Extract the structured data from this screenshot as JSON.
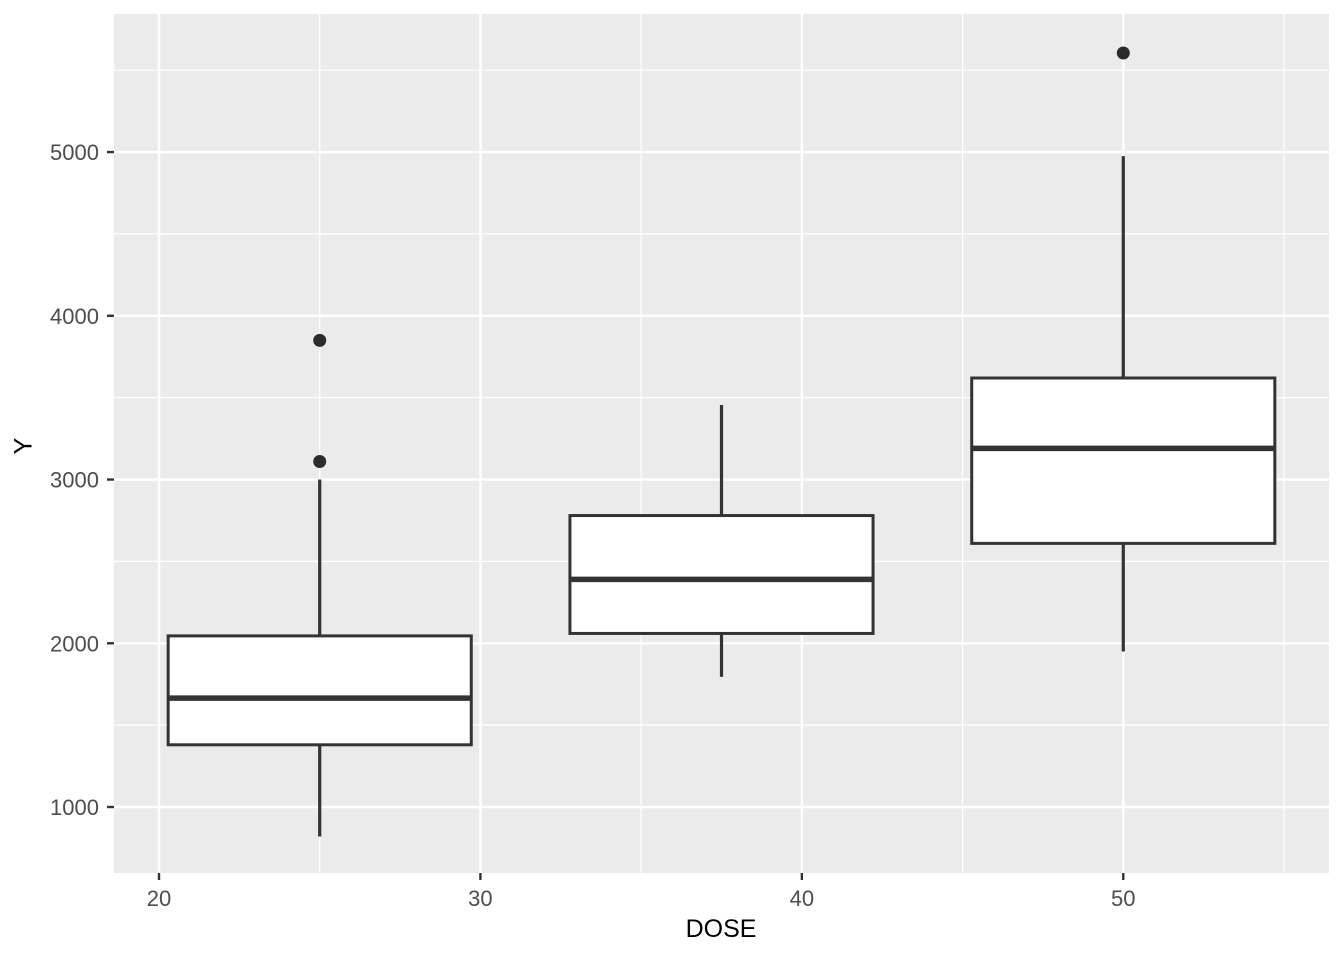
{
  "figure": {
    "background": "#ffffff",
    "panel_background": "#ebebeb",
    "grid_color": "#ffffff",
    "box_fill": "#ffffff",
    "box_stroke": "#333333",
    "outlier_color": "#2b2b2b",
    "tick_mark_color": "#333333",
    "tick_label_color": "#4d4d4d",
    "axis_title_color": "#000000"
  },
  "chart_data": {
    "type": "boxplot",
    "title": "",
    "xlabel": "DOSE",
    "ylabel": "Y",
    "xlim": [
      18.6,
      56.4
    ],
    "ylim": [
      597,
      5843
    ],
    "x_major_ticks": [
      20,
      30,
      40,
      50
    ],
    "x_minor_ticks": [
      25,
      35,
      45,
      55
    ],
    "y_major_ticks": [
      1000,
      2000,
      3000,
      4000,
      5000
    ],
    "y_minor_ticks": [
      1500,
      2500,
      3500,
      4500,
      5500
    ],
    "grid": true,
    "legend": false,
    "box_width": 9.43,
    "groups": [
      {
        "x": 25,
        "whisker_low": 820,
        "q1": 1380,
        "median": 1665,
        "q3": 2045,
        "whisker_high": 3000,
        "outliers": [
          3110,
          3850
        ]
      },
      {
        "x": 37.5,
        "whisker_low": 1795,
        "q1": 2060,
        "median": 2390,
        "q3": 2780,
        "whisker_high": 3455,
        "outliers": []
      },
      {
        "x": 50,
        "whisker_low": 1950,
        "q1": 2610,
        "median": 3190,
        "q3": 3620,
        "whisker_high": 4975,
        "outliers": [
          5605
        ]
      }
    ]
  }
}
